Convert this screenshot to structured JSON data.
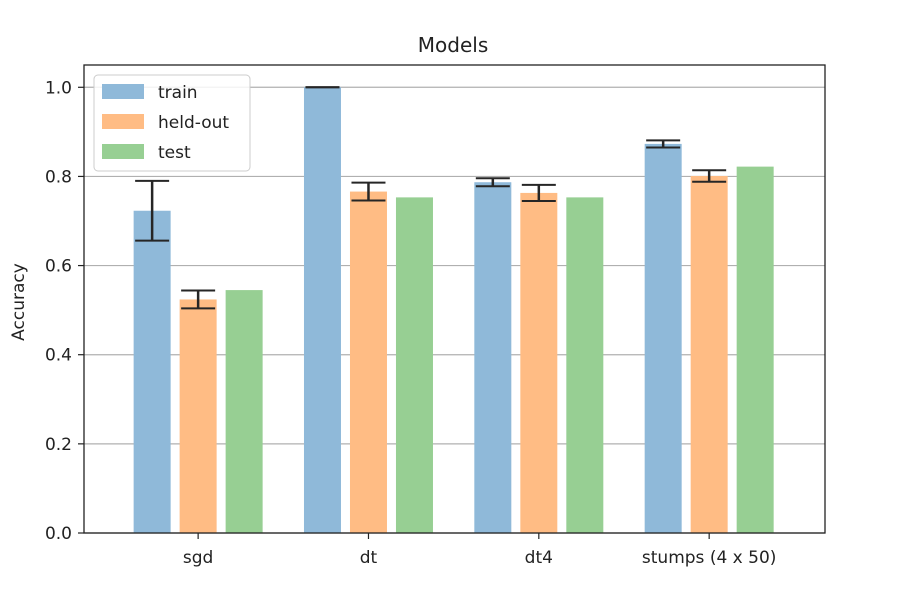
{
  "chart_data": {
    "type": "bar",
    "title": "Models",
    "xlabel": "",
    "ylabel": "Accuracy",
    "ylim": [
      0,
      1.05
    ],
    "yticks": [
      "0.0",
      "0.2",
      "0.4",
      "0.6",
      "0.8",
      "1.0"
    ],
    "grid": "horizontal",
    "legend_position": "top-left",
    "categories": [
      "sgd",
      "dt",
      "dt4",
      "stumps (4 x 50)"
    ],
    "series": [
      {
        "name": "train",
        "color": "#8fb9d9",
        "values": [
          0.723,
          1.0,
          0.787,
          0.873
        ],
        "errors": [
          0.067,
          0.0,
          0.009,
          0.008
        ]
      },
      {
        "name": "held-out",
        "color": "#ffbc84",
        "values": [
          0.524,
          0.766,
          0.763,
          0.801
        ],
        "errors": [
          0.02,
          0.02,
          0.018,
          0.013
        ]
      },
      {
        "name": "test",
        "color": "#97cf93",
        "values": [
          0.545,
          0.753,
          0.753,
          0.822
        ],
        "errors": null
      }
    ]
  }
}
